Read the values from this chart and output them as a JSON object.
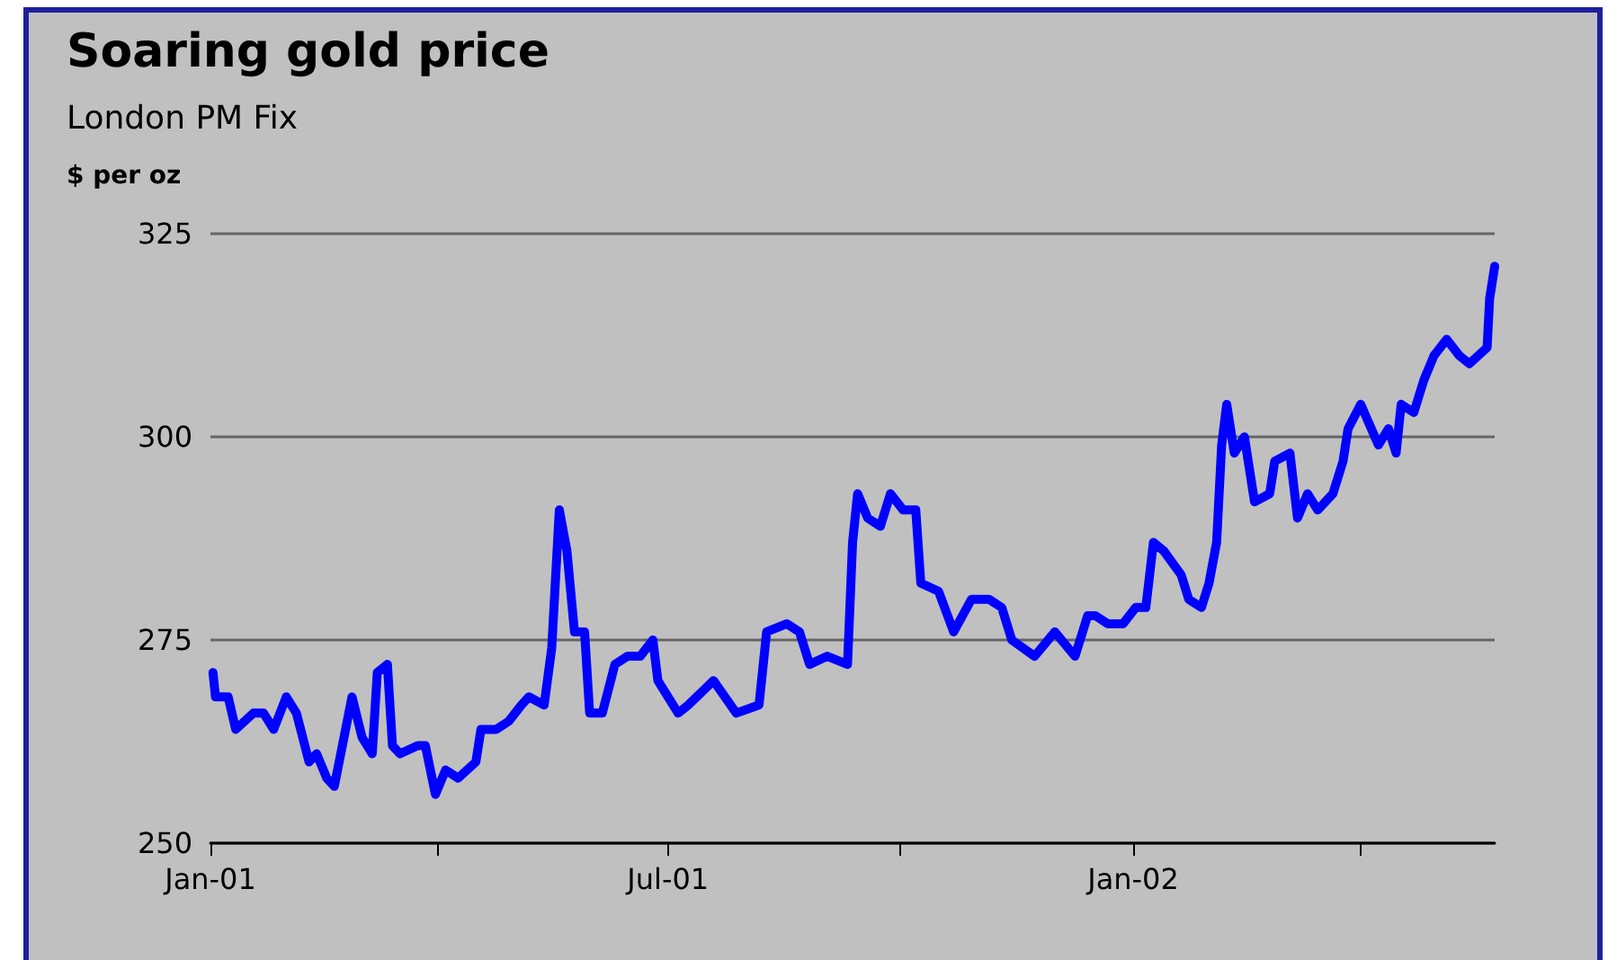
{
  "chart_data": {
    "type": "line",
    "title": "Soaring gold price",
    "subtitle": "London PM Fix",
    "ylabel": "$ per oz",
    "xlim": [
      "2001-01-01",
      "2002-05-24"
    ],
    "xticks": [
      {
        "value": "2001-01-01",
        "label": "Jan-01"
      },
      {
        "value": "2001-04-01",
        "label": null
      },
      {
        "value": "2001-07-01",
        "label": "Jul-01"
      },
      {
        "value": "2001-10-01",
        "label": null
      },
      {
        "value": "2002-01-01",
        "label": "Jan-02"
      },
      {
        "value": "2002-04-01",
        "label": null
      }
    ],
    "ylim": [
      250,
      325
    ],
    "yticks": [
      250,
      275,
      300,
      325
    ],
    "grid": "y",
    "marker": "none",
    "line_style": "solid",
    "series": [
      {
        "color": "#0000ff",
        "x": [
          "2001-01-02",
          "2001-01-03",
          "2001-01-08",
          "2001-01-11",
          "2001-01-18",
          "2001-01-22",
          "2001-01-26",
          "2001-01-31",
          "2001-02-04",
          "2001-02-09",
          "2001-02-12",
          "2001-02-16",
          "2001-02-19",
          "2001-02-26",
          "2001-03-02",
          "2001-03-06",
          "2001-03-08",
          "2001-03-12",
          "2001-03-14",
          "2001-03-17",
          "2001-03-24",
          "2001-03-27",
          "2001-03-31",
          "2001-04-04",
          "2001-04-09",
          "2001-04-16",
          "2001-04-18",
          "2001-04-24",
          "2001-04-29",
          "2001-05-04",
          "2001-05-07",
          "2001-05-13",
          "2001-05-16",
          "2001-05-19",
          "2001-05-22",
          "2001-05-25",
          "2001-05-29",
          "2001-05-31",
          "2001-06-05",
          "2001-06-10",
          "2001-06-15",
          "2001-06-20",
          "2001-06-25",
          "2001-06-27",
          "2001-07-05",
          "2001-07-09",
          "2001-07-19",
          "2001-07-28",
          "2001-08-06",
          "2001-08-09",
          "2001-08-17",
          "2001-08-22",
          "2001-08-26",
          "2001-09-02",
          "2001-09-10",
          "2001-09-12",
          "2001-09-14",
          "2001-09-18",
          "2001-09-23",
          "2001-09-27",
          "2001-10-02",
          "2001-10-07",
          "2001-10-09",
          "2001-10-16",
          "2001-10-22",
          "2001-10-29",
          "2001-11-05",
          "2001-11-10",
          "2001-11-14",
          "2001-11-23",
          "2001-12-01",
          "2001-12-09",
          "2001-12-14",
          "2001-12-17",
          "2001-12-22",
          "2001-12-28",
          "2002-01-02",
          "2002-01-06",
          "2002-01-09",
          "2002-01-13",
          "2002-01-20",
          "2002-01-23",
          "2002-01-28",
          "2002-01-31",
          "2002-02-03",
          "2002-02-05",
          "2002-02-07",
          "2002-02-10",
          "2002-02-14",
          "2002-02-18",
          "2002-02-24",
          "2002-02-26",
          "2002-03-04",
          "2002-03-07",
          "2002-03-11",
          "2002-03-15",
          "2002-03-21",
          "2002-03-25",
          "2002-03-27",
          "2002-04-01",
          "2002-04-08",
          "2002-04-12",
          "2002-04-15",
          "2002-04-17",
          "2002-04-22",
          "2002-04-26",
          "2002-04-30",
          "2002-05-05",
          "2002-05-10",
          "2002-05-14",
          "2002-05-21",
          "2002-05-22",
          "2002-05-24"
        ],
        "values": [
          271,
          268,
          268,
          264,
          266,
          266,
          264,
          268,
          266,
          260,
          261,
          258,
          257,
          268,
          263,
          261,
          271,
          272,
          262,
          261,
          262,
          262,
          256,
          259,
          258,
          260,
          264,
          264,
          265,
          267,
          268,
          267,
          274,
          291,
          286,
          276,
          276,
          266,
          266,
          272,
          273,
          273,
          275,
          270,
          266,
          267,
          270,
          266,
          267,
          276,
          277,
          276,
          272,
          273,
          272,
          287,
          293,
          290,
          289,
          293,
          291,
          291,
          282,
          281,
          276,
          280,
          280,
          279,
          275,
          273,
          276,
          273,
          278,
          278,
          277,
          277,
          279,
          279,
          287,
          286,
          283,
          280,
          279,
          282,
          287,
          299,
          304,
          298,
          300,
          292,
          293,
          297,
          298,
          290,
          293,
          291,
          293,
          297,
          301,
          304,
          299,
          301,
          298,
          304,
          303,
          307,
          310,
          312,
          310,
          309,
          311,
          317,
          321
        ]
      }
    ]
  }
}
